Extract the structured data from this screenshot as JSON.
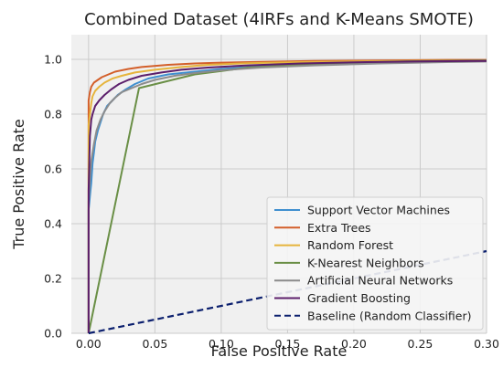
{
  "chart_data": {
    "type": "line",
    "title": "Combined Dataset (4IRFs and K-Means SMOTE)",
    "xlabel": "False Positive Rate",
    "ylabel": "True Positive Rate",
    "xlim": [
      -0.013,
      0.3
    ],
    "ylim": [
      0.0,
      1.09
    ],
    "x_ticks": [
      0.0,
      0.05,
      0.1,
      0.15,
      0.2,
      0.25,
      0.3
    ],
    "x_tick_labels": [
      "0.00",
      "0.05",
      "0.10",
      "0.15",
      "0.20",
      "0.25",
      "0.30"
    ],
    "y_ticks": [
      0.0,
      0.2,
      0.4,
      0.6,
      0.8,
      1.0
    ],
    "y_tick_labels": [
      "0.0",
      "0.2",
      "0.4",
      "0.6",
      "0.8",
      "1.0"
    ],
    "grid": true,
    "background": "#f0f0f0",
    "legend_position": "bottom-right",
    "series": [
      {
        "name": "Support Vector Machines",
        "color": "#3f8fcf",
        "dash": "solid",
        "x": [
          0.0,
          0.0,
          0.001,
          0.002,
          0.003,
          0.004,
          0.005,
          0.007,
          0.009,
          0.011,
          0.014,
          0.018,
          0.022,
          0.028,
          0.035,
          0.045,
          0.06,
          0.08,
          0.1,
          0.13,
          0.17,
          0.22,
          0.27,
          0.3
        ],
        "y": [
          0.0,
          0.45,
          0.5,
          0.55,
          0.62,
          0.66,
          0.7,
          0.74,
          0.77,
          0.8,
          0.83,
          0.85,
          0.87,
          0.89,
          0.91,
          0.93,
          0.945,
          0.955,
          0.965,
          0.975,
          0.985,
          0.99,
          0.995,
          0.996
        ]
      },
      {
        "name": "Extra Trees",
        "color": "#d35f2a",
        "dash": "solid",
        "x": [
          0.0,
          0.0,
          0.001,
          0.002,
          0.004,
          0.007,
          0.01,
          0.015,
          0.02,
          0.03,
          0.04,
          0.06,
          0.08,
          0.1,
          0.13,
          0.17,
          0.22,
          0.27,
          0.3
        ],
        "y": [
          0.0,
          0.85,
          0.88,
          0.9,
          0.915,
          0.925,
          0.935,
          0.945,
          0.955,
          0.965,
          0.972,
          0.98,
          0.985,
          0.988,
          0.991,
          0.994,
          0.996,
          0.998,
          0.998
        ]
      },
      {
        "name": "Random Forest",
        "color": "#e6b43c",
        "dash": "solid",
        "x": [
          0.0,
          0.0,
          0.001,
          0.002,
          0.003,
          0.005,
          0.008,
          0.012,
          0.018,
          0.025,
          0.035,
          0.05,
          0.07,
          0.09,
          0.12,
          0.16,
          0.21,
          0.26,
          0.3
        ],
        "y": [
          0.0,
          0.76,
          0.8,
          0.84,
          0.865,
          0.885,
          0.9,
          0.915,
          0.93,
          0.94,
          0.952,
          0.962,
          0.972,
          0.98,
          0.986,
          0.99,
          0.993,
          0.995,
          0.995
        ]
      },
      {
        "name": "K-Nearest Neighbors",
        "color": "#6a8f46",
        "dash": "solid",
        "x": [
          0.0,
          0.038,
          0.08,
          0.12,
          0.18,
          0.24,
          0.3
        ],
        "y": [
          0.0,
          0.895,
          0.945,
          0.97,
          0.985,
          0.993,
          0.996
        ]
      },
      {
        "name": "Artificial Neural Networks",
        "color": "#8c8c8c",
        "dash": "solid",
        "x": [
          0.0,
          0.0,
          0.001,
          0.002,
          0.004,
          0.006,
          0.009,
          0.012,
          0.016,
          0.02,
          0.025,
          0.03,
          0.04,
          0.05,
          0.065,
          0.08,
          0.1,
          0.13,
          0.17,
          0.22,
          0.25,
          0.27,
          0.3
        ],
        "y": [
          0.0,
          0.48,
          0.56,
          0.63,
          0.69,
          0.74,
          0.78,
          0.81,
          0.84,
          0.86,
          0.88,
          0.89,
          0.91,
          0.925,
          0.94,
          0.95,
          0.96,
          0.97,
          0.978,
          0.985,
          0.988,
          0.99,
          0.992
        ]
      },
      {
        "name": "Gradient Boosting",
        "color": "#5c1f6b",
        "dash": "solid",
        "x": [
          0.0,
          0.0,
          0.001,
          0.002,
          0.003,
          0.005,
          0.008,
          0.012,
          0.017,
          0.023,
          0.03,
          0.04,
          0.055,
          0.07,
          0.09,
          0.12,
          0.16,
          0.21,
          0.26,
          0.3
        ],
        "y": [
          0.0,
          0.52,
          0.72,
          0.78,
          0.8,
          0.83,
          0.85,
          0.87,
          0.89,
          0.91,
          0.925,
          0.94,
          0.952,
          0.962,
          0.97,
          0.978,
          0.985,
          0.99,
          0.993,
          0.994
        ]
      },
      {
        "name": "Baseline (Random Classifier)",
        "color": "#0b1f6e",
        "dash": "dashed",
        "x": [
          0.0,
          0.3
        ],
        "y": [
          0.0,
          0.3
        ]
      }
    ]
  }
}
